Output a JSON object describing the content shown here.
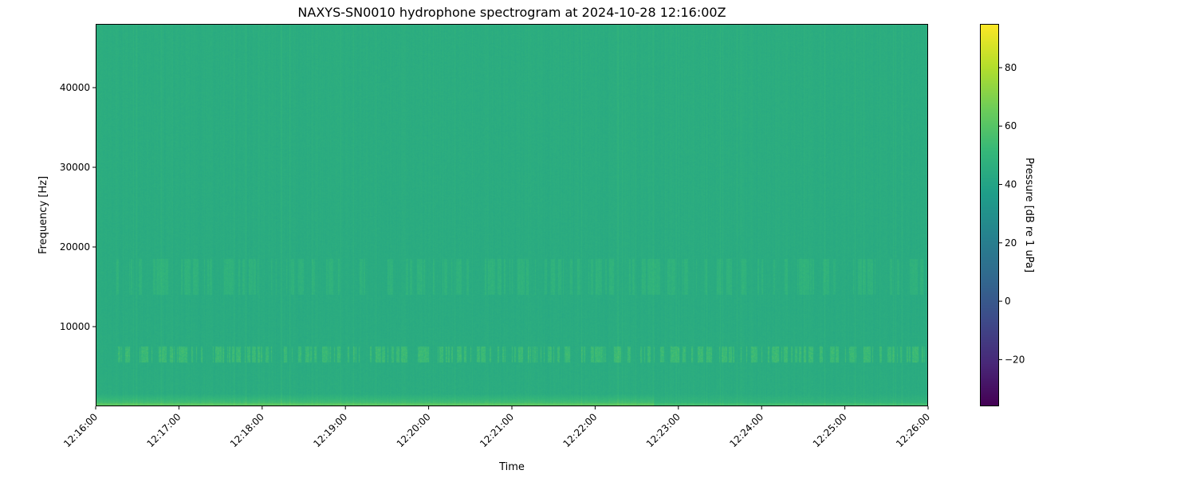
{
  "chart_data": {
    "type": "heatmap",
    "title": "NAXYS-SN0010 hydrophone spectrogram at 2024-10-28 12:16:00Z",
    "xlabel": "Time",
    "ylabel": "Frequency [Hz]",
    "colorbar_label": "Pressure [dB re 1 uPa]",
    "colormap": "viridis",
    "xlim": [
      "12:16:00",
      "12:26:00"
    ],
    "ylim": [
      0,
      48000
    ],
    "clim": [
      -36,
      95
    ],
    "x_ticks": [
      "12:16:00",
      "12:17:00",
      "12:18:00",
      "12:19:00",
      "12:20:00",
      "12:21:00",
      "12:22:00",
      "12:23:00",
      "12:24:00",
      "12:25:00",
      "12:26:00"
    ],
    "y_ticks": [
      10000,
      20000,
      30000,
      40000
    ],
    "colorbar_ticks": [
      -20,
      0,
      20,
      40,
      60,
      80
    ],
    "background_level_db": 45,
    "features": [
      {
        "description_freq_hz": [
          5500,
          7500
        ],
        "level_db": 55
      },
      {
        "description_freq_hz": [
          14000,
          18500
        ],
        "level_db": 52
      },
      {
        "description_freq_hz": [
          0,
          1500
        ],
        "level_db": 58
      }
    ]
  }
}
